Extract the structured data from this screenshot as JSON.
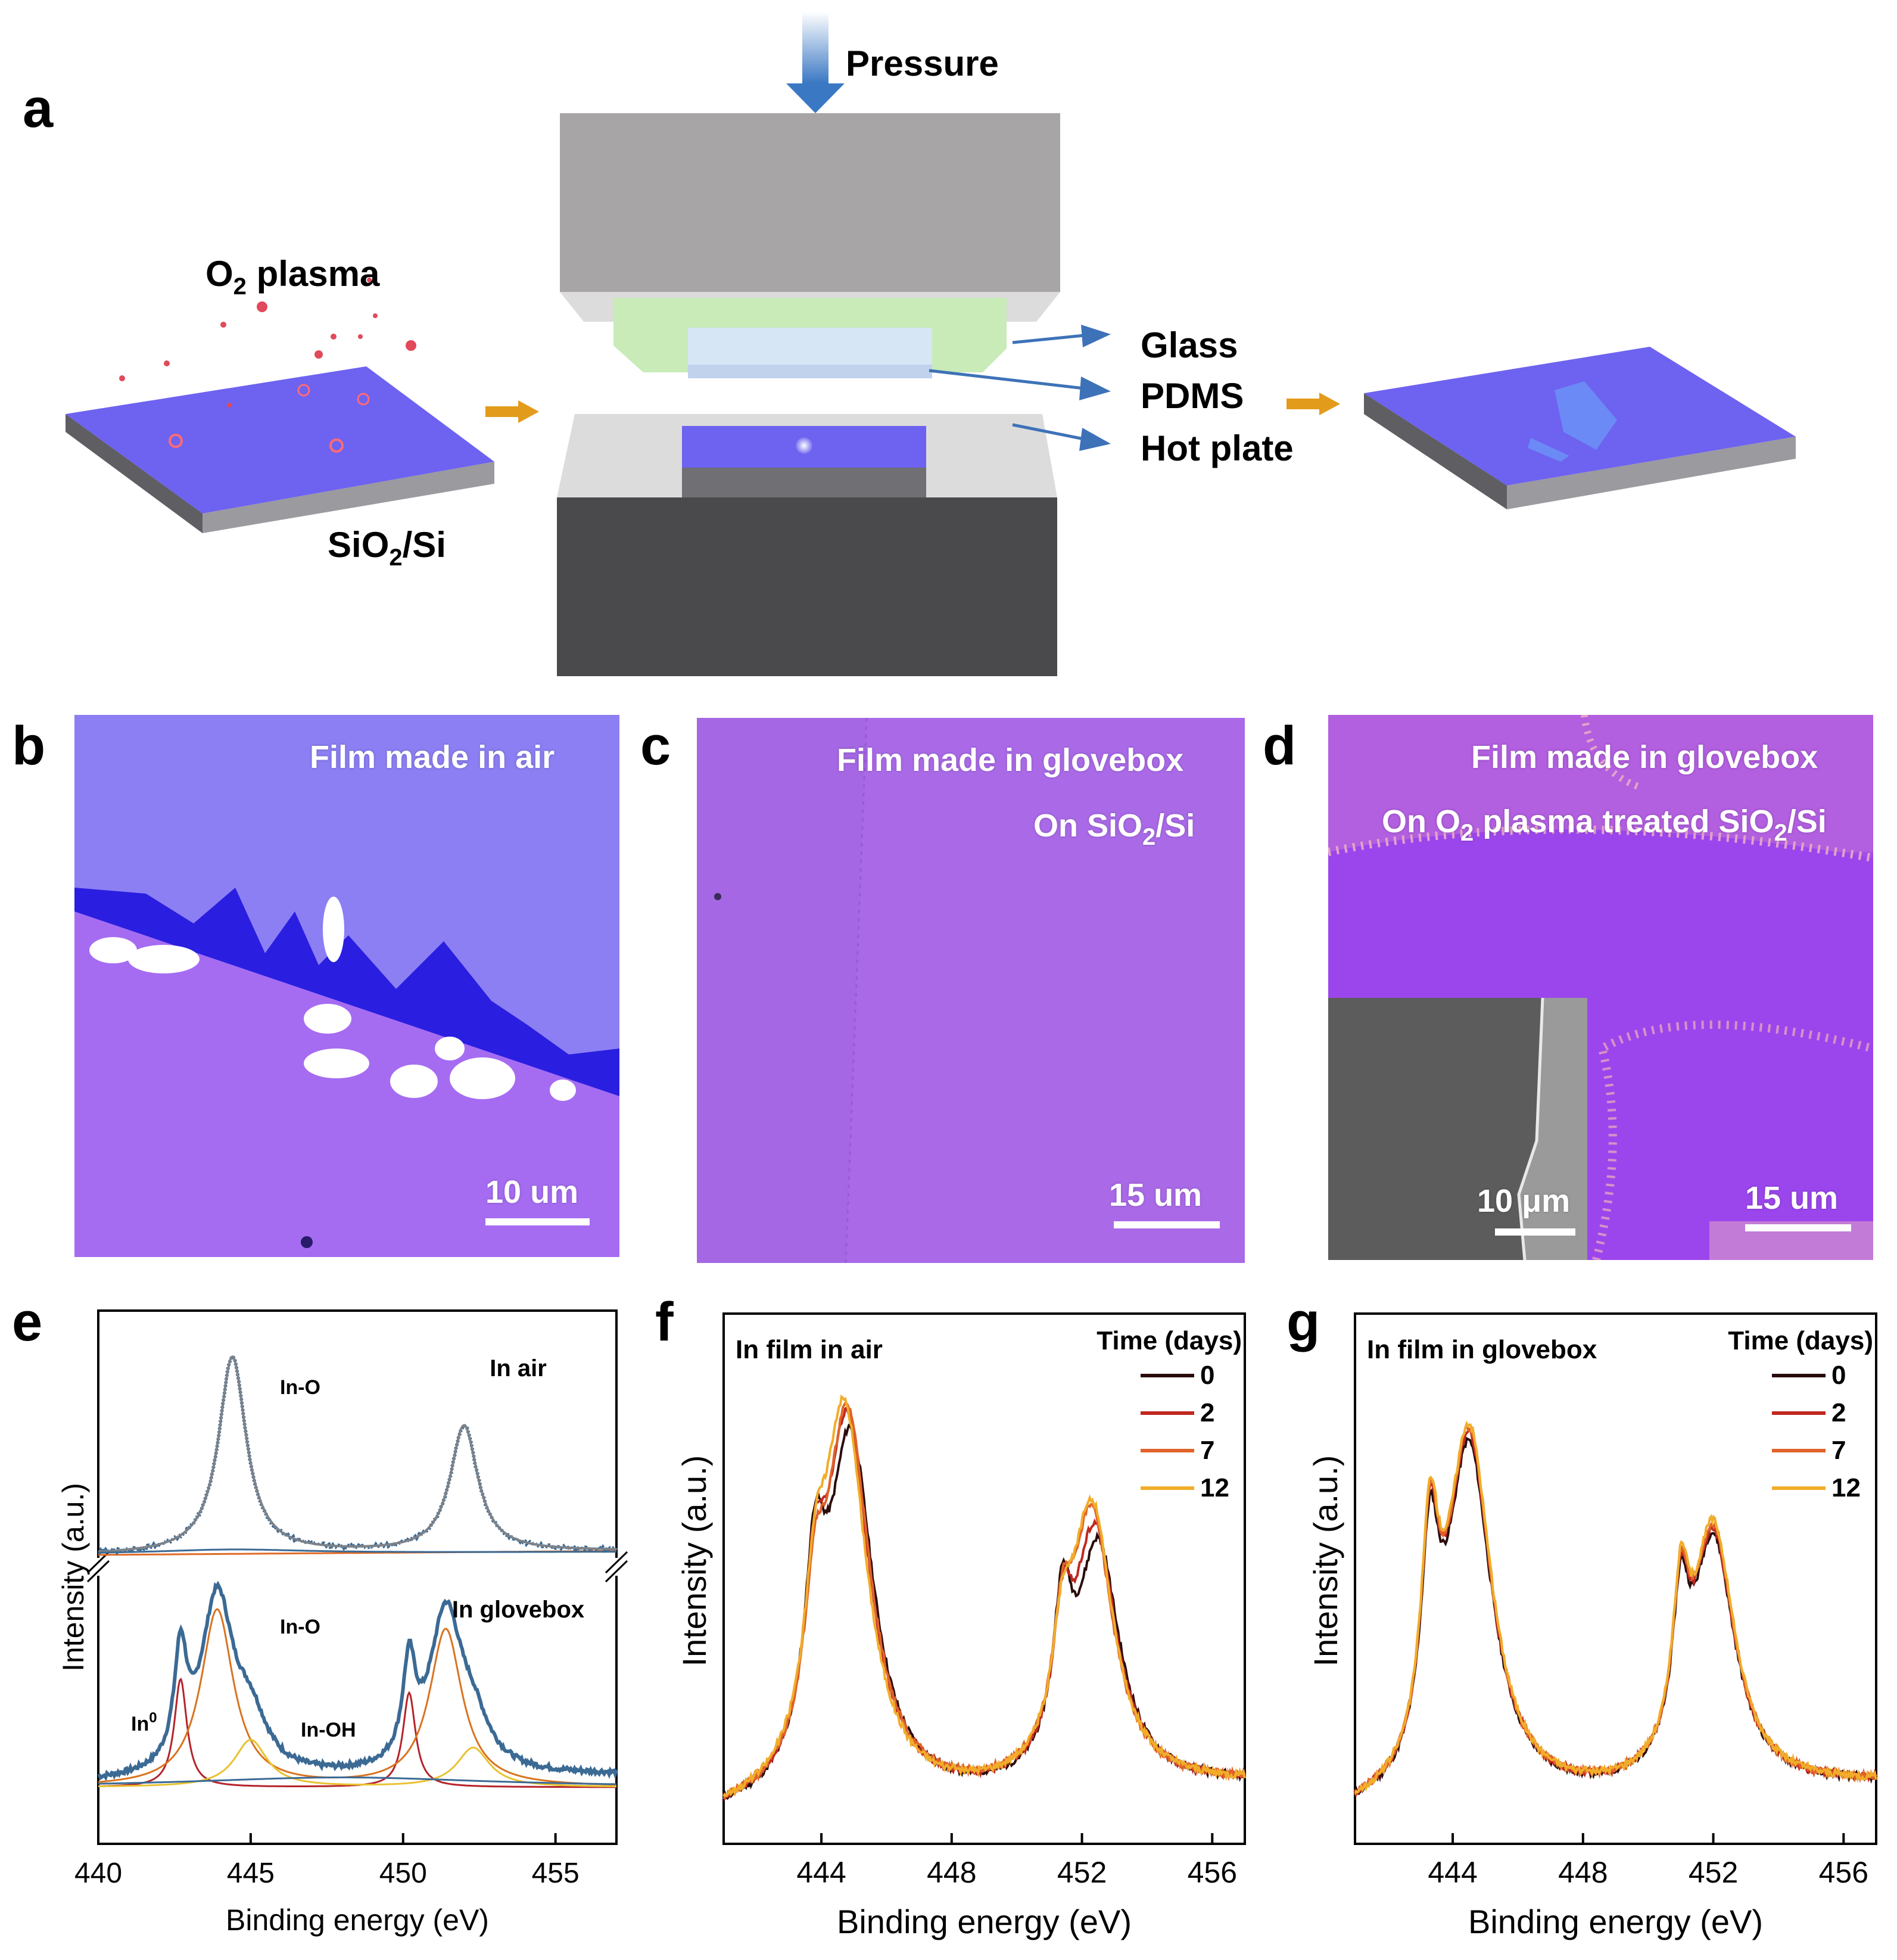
{
  "panel_a": {
    "letter": "a",
    "pressure": "Pressure",
    "o2_plasma": {
      "main": "O",
      "sub": "2",
      "rest": " plasma"
    },
    "substrate": {
      "main": "SiO",
      "sub": "2",
      "rest": "/Si"
    },
    "glass": "Glass",
    "pdms": "PDMS",
    "hot_plate": "Hot plate",
    "colors": {
      "wafer_top": "#6e62f0",
      "wafer_side": "#8f8f95",
      "press_top": "#a7a5a6",
      "hot_plate": "#4a4a4c"
    }
  },
  "panel_b": {
    "letter": "b",
    "label": "Film made in air",
    "scale": "10 um"
  },
  "panel_c": {
    "letter": "c",
    "label": "Film made in glovebox",
    "sub_label": {
      "main": "On SiO",
      "sub": "2",
      "rest": "/Si"
    },
    "scale": "15 um"
  },
  "panel_d": {
    "letter": "d",
    "label": "Film made in glovebox",
    "sub_label": {
      "main": "On O",
      "sub": "2",
      "mid": " plasma treated SiO",
      "sub2": "2",
      "rest": "/Si"
    },
    "scale": "15 um",
    "inset_scale": "10 μm"
  },
  "chart_data": [
    {
      "id": "e",
      "letter": "e",
      "type": "line",
      "xlabel": "Binding energy (eV)",
      "ylabel": "Intensity (a.u.)",
      "xlim": [
        440,
        457
      ],
      "xticks": [
        "440",
        "445",
        "450",
        "455"
      ],
      "xtick_values": [
        440,
        445,
        450,
        455
      ],
      "annotations": {
        "in_air": "In air",
        "in_glovebox": "In glovebox",
        "in_o_top": "In-O",
        "in_o_bottom": "In-O",
        "in_oh": "In-OH",
        "in0": {
          "main": "In",
          "sup": "0"
        }
      },
      "series": [
        {
          "name": "In air fit",
          "panel": "top",
          "color": "#7d8288",
          "peaks": [
            [
              444.4,
              1.0,
              0.55
            ],
            [
              452.0,
              0.64,
              0.55
            ]
          ]
        },
        {
          "name": "In glovebox data",
          "panel": "bottom",
          "color": "#3b6a94",
          "peaks": [
            [
              442.7,
              0.55,
              0.25
            ],
            [
              443.9,
              0.9,
              0.65
            ],
            [
              445.0,
              0.24,
              0.65
            ],
            [
              450.2,
              0.48,
              0.25
            ],
            [
              451.4,
              0.8,
              0.65
            ],
            [
              452.3,
              0.2,
              0.65
            ]
          ]
        },
        {
          "name": "In0",
          "panel": "bottom",
          "color": "#b5232b",
          "peaks": [
            [
              442.7,
              0.55,
              0.25
            ],
            [
              450.2,
              0.48,
              0.25
            ]
          ]
        },
        {
          "name": "In-O",
          "panel": "bottom",
          "color": "#d9731f",
          "peaks": [
            [
              443.9,
              0.9,
              0.65
            ],
            [
              451.4,
              0.8,
              0.65
            ]
          ]
        },
        {
          "name": "In-OH",
          "panel": "bottom",
          "color": "#e8c232",
          "peaks": [
            [
              445.0,
              0.24,
              0.65
            ],
            [
              452.3,
              0.2,
              0.65
            ]
          ]
        }
      ]
    },
    {
      "id": "f",
      "letter": "f",
      "type": "line",
      "title": "In film in air",
      "legend_title": "Time (days)",
      "xlabel": "Binding energy (eV)",
      "ylabel": "Intensity (a.u.)",
      "xlim": [
        441,
        457
      ],
      "xticks": [
        "444",
        "448",
        "452",
        "456"
      ],
      "xtick_values": [
        444,
        448,
        452,
        456
      ],
      "series": [
        {
          "name": "0",
          "color": "#2a0b0b",
          "peaks": [
            [
              443.8,
              0.42,
              0.38
            ],
            [
              444.9,
              0.88,
              0.85
            ],
            [
              451.4,
              0.35,
              0.35
            ],
            [
              452.5,
              0.58,
              0.8
            ]
          ]
        },
        {
          "name": "2",
          "color": "#c0271f",
          "peaks": [
            [
              443.8,
              0.34,
              0.38
            ],
            [
              444.8,
              0.92,
              0.85
            ],
            [
              451.4,
              0.28,
              0.35
            ],
            [
              452.4,
              0.62,
              0.8
            ]
          ]
        },
        {
          "name": "7",
          "color": "#e0622a",
          "peaks": [
            [
              443.8,
              0.3,
              0.38
            ],
            [
              444.8,
              0.94,
              0.85
            ],
            [
              451.4,
              0.24,
              0.35
            ],
            [
              452.3,
              0.66,
              0.8
            ]
          ]
        },
        {
          "name": "12",
          "color": "#f1ad2a",
          "peaks": [
            [
              443.8,
              0.28,
              0.38
            ],
            [
              444.7,
              0.95,
              0.85
            ],
            [
              451.4,
              0.22,
              0.35
            ],
            [
              452.3,
              0.68,
              0.8
            ]
          ]
        }
      ]
    },
    {
      "id": "g",
      "letter": "g",
      "type": "line",
      "title": "In film in glovebox",
      "legend_title": "Time (days)",
      "xlabel": "Binding energy (eV)",
      "ylabel": "Intensity (a.u.)",
      "xlim": [
        441,
        457
      ],
      "xticks": [
        "444",
        "448",
        "452",
        "456"
      ],
      "xtick_values": [
        444,
        448,
        452,
        456
      ],
      "series": [
        {
          "name": "0",
          "color": "#2a0b0b",
          "peaks": [
            [
              443.3,
              0.48,
              0.33
            ],
            [
              444.5,
              0.86,
              0.85
            ],
            [
              451.0,
              0.33,
              0.3
            ],
            [
              452.0,
              0.6,
              0.8
            ]
          ]
        },
        {
          "name": "2",
          "color": "#c0271f",
          "peaks": [
            [
              443.3,
              0.5,
              0.33
            ],
            [
              444.5,
              0.88,
              0.85
            ],
            [
              451.0,
              0.34,
              0.3
            ],
            [
              452.0,
              0.61,
              0.8
            ]
          ]
        },
        {
          "name": "7",
          "color": "#e0622a",
          "peaks": [
            [
              443.3,
              0.5,
              0.33
            ],
            [
              444.5,
              0.89,
              0.85
            ],
            [
              451.0,
              0.34,
              0.3
            ],
            [
              452.0,
              0.62,
              0.8
            ]
          ]
        },
        {
          "name": "12",
          "color": "#f1ad2a",
          "peaks": [
            [
              443.3,
              0.51,
              0.33
            ],
            [
              444.5,
              0.9,
              0.85
            ],
            [
              451.0,
              0.35,
              0.3
            ],
            [
              452.0,
              0.63,
              0.8
            ]
          ]
        }
      ]
    }
  ]
}
